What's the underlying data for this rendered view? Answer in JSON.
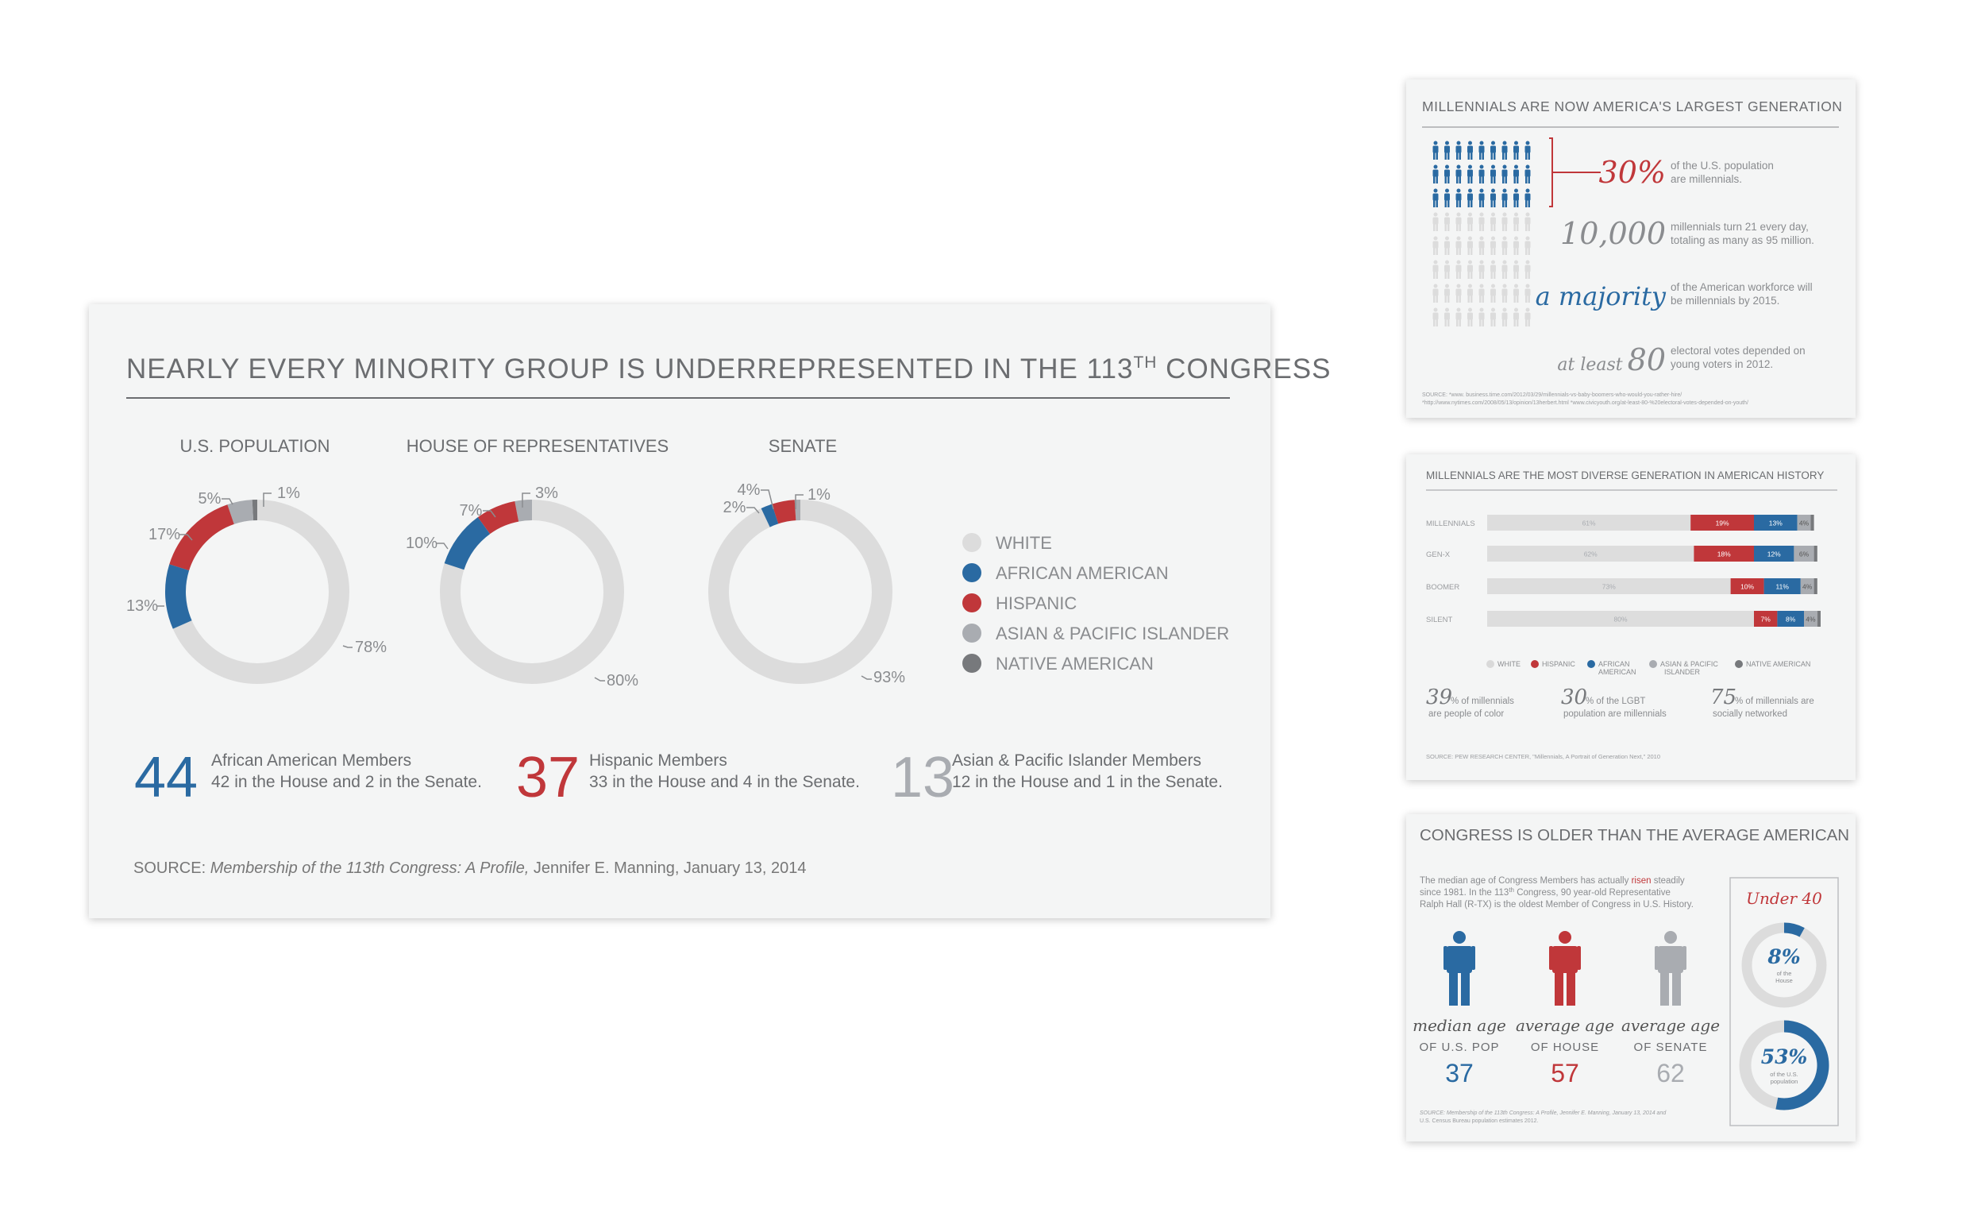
{
  "colors": {
    "white": "#dcdcdc",
    "african_american": "#2a6aa2",
    "hispanic": "#c0373a",
    "asian": "#a9acb1",
    "native": "#77797c",
    "text": "#666666"
  },
  "main": {
    "title": "NEARLY EVERY MINORITY GROUP IS UNDERREPRESENTED IN THE 113",
    "title_sup": "TH",
    "title_end": " CONGRESS",
    "source_prefix": "SOURCE: ",
    "source_italic": "Membership of the 113th Congress: A Profile,",
    "source_rest": " Jennifer E. Manning, January 13, 2014",
    "stats": [
      {
        "number": "44",
        "line1": "African American Members",
        "line2": "42 in the House and 2 in the Senate."
      },
      {
        "number": "37",
        "line1": "Hispanic Members",
        "line2": "33 in the House and 4 in the Senate."
      },
      {
        "number": "13",
        "line1": "Asian & Pacific Islander Members",
        "line2": "12 in the House and 1 in the Senate."
      }
    ]
  },
  "chart_data": [
    {
      "type": "pie",
      "title": "NEARLY EVERY MINORITY GROUP IS UNDERREPRESENTED IN THE 113TH CONGRESS",
      "donut": true,
      "legend": [
        "WHITE",
        "AFRICAN AMERICAN",
        "HISPANIC",
        "ASIAN & PACIFIC ISLANDER",
        "NATIVE AMERICAN"
      ],
      "legend_position": "right",
      "charts": [
        {
          "name": "U.S. POPULATION",
          "values": [
            78,
            13,
            17,
            5,
            1
          ],
          "labels": [
            "78%",
            "13%",
            "17%",
            "5%",
            "1%"
          ]
        },
        {
          "name": "HOUSE OF REPRESENTATIVES",
          "values": [
            80,
            10,
            7,
            3,
            0
          ],
          "labels": [
            "80%",
            "10%",
            "7%",
            "3%",
            ""
          ]
        },
        {
          "name": "SENATE",
          "values": [
            93,
            2,
            4,
            1,
            0
          ],
          "labels": [
            "93%",
            "2%",
            "4%",
            "1%",
            ""
          ]
        }
      ]
    },
    {
      "type": "bar",
      "title": "MILLENNIALS ARE THE MOST DIVERSE GENERATION IN AMERICAN HISTORY",
      "stacked": true,
      "categories": [
        "MILLENNIALS",
        "GEN-X",
        "BOOMER",
        "SILENT"
      ],
      "series": [
        {
          "name": "WHITE",
          "values": [
            61,
            62,
            73,
            80
          ]
        },
        {
          "name": "HISPANIC",
          "values": [
            19,
            18,
            10,
            7
          ]
        },
        {
          "name": "AFRICAN AMERICAN",
          "values": [
            13,
            12,
            11,
            8
          ]
        },
        {
          "name": "ASIAN & PACIFIC ISLANDER",
          "values": [
            4,
            6,
            4,
            4
          ]
        },
        {
          "name": "NATIVE AMERICAN",
          "values": [
            1,
            1,
            1,
            1
          ]
        }
      ],
      "legend_position": "bottom"
    },
    {
      "type": "pie",
      "title": "Under 40",
      "donut": true,
      "charts": [
        {
          "name": "of the House",
          "values": [
            8,
            92
          ],
          "labels": [
            "8%"
          ]
        },
        {
          "name": "of the U.S. population",
          "values": [
            53,
            47
          ],
          "labels": [
            "53%"
          ]
        }
      ]
    }
  ],
  "card1": {
    "title": "MILLENNIALS ARE NOW AMERICA'S LARGEST GENERATION",
    "icon_rows": 8,
    "icon_cols": 9,
    "highlighted_rows": 3,
    "facts": [
      {
        "big": "30%",
        "text1": "of the U.S. population",
        "text2": "are millennials.",
        "color": "red"
      },
      {
        "big": "10,000",
        "text1": "millennials turn 21 every day,",
        "text2": "totaling as many as 95 million.",
        "color": "grey"
      },
      {
        "big": "a majority",
        "text1": "of the American workforce will",
        "text2": "be millennials by 2015.",
        "color": "blue"
      },
      {
        "prefix": "at least",
        "big": "80",
        "text1": "electoral votes depended on",
        "text2": "young voters in 2012.",
        "color": "grey"
      }
    ],
    "source1": "SOURCE:  *www. business.time.com/2012/03/29/millennials-vs-baby-boomers-who-would-you-rather-hire/",
    "source2": "*http://www.nytimes.com/2008/05/13/opinion/13herbert.html   *www.civicyouth.org/at-least-80-%20electoral-votes-depended-on-youth/"
  },
  "card2": {
    "title": "MILLENNIALS ARE THE MOST DIVERSE GENERATION IN AMERICAN HISTORY",
    "legend": [
      "WHITE",
      "HISPANIC",
      "AFRICAN",
      "AMERICAN",
      "ASIAN & PACIFIC",
      "ISLANDER",
      "NATIVE AMERICAN"
    ],
    "facts": [
      {
        "big": "39",
        "pct": "% of millennials",
        "sub": "are people of color"
      },
      {
        "big": "30",
        "pct": "% of the LGBT",
        "sub": "population are millennials"
      },
      {
        "big": "75",
        "pct": "% of millennials are",
        "sub": "socially networked"
      }
    ],
    "source": "SOURCE: PEW RESEARCH CENTER, \"Millennials, A Portrait of Generation Next,\" 2010"
  },
  "card3": {
    "title": "CONGRESS IS OLDER THAN THE AVERAGE AMERICAN",
    "para1": "The median age of Congress Members has actually ",
    "para_risen": "risen",
    "para2": " steadily",
    "para3": "since 1981. In the 113",
    "para3_sup": "th",
    "para4": " Congress, 90 year-old Representative",
    "para5": "Ralph Hall (R-TX) is the oldest Member of Congress in U.S. History.",
    "people": [
      {
        "script": "median age",
        "label": "OF U.S. POP",
        "age": "37",
        "color": "blue"
      },
      {
        "script": "average age",
        "label": "OF HOUSE",
        "age": "57",
        "color": "red"
      },
      {
        "script": "average age",
        "label": "OF SENATE",
        "age": "62",
        "color": "grey"
      }
    ],
    "under40": "Under 40",
    "ring1": {
      "pct": "8%",
      "sub1": "of the",
      "sub2": "House"
    },
    "ring2": {
      "pct": "53%",
      "sub1": "of the U.S.",
      "sub2": "population"
    },
    "source1": "SOURCE: Membership of the 113th Congress: A Profile, Jennifer E. Manning, January 13, 2014 and",
    "source2": "U.S. Census Bureau population estimates 2012."
  }
}
